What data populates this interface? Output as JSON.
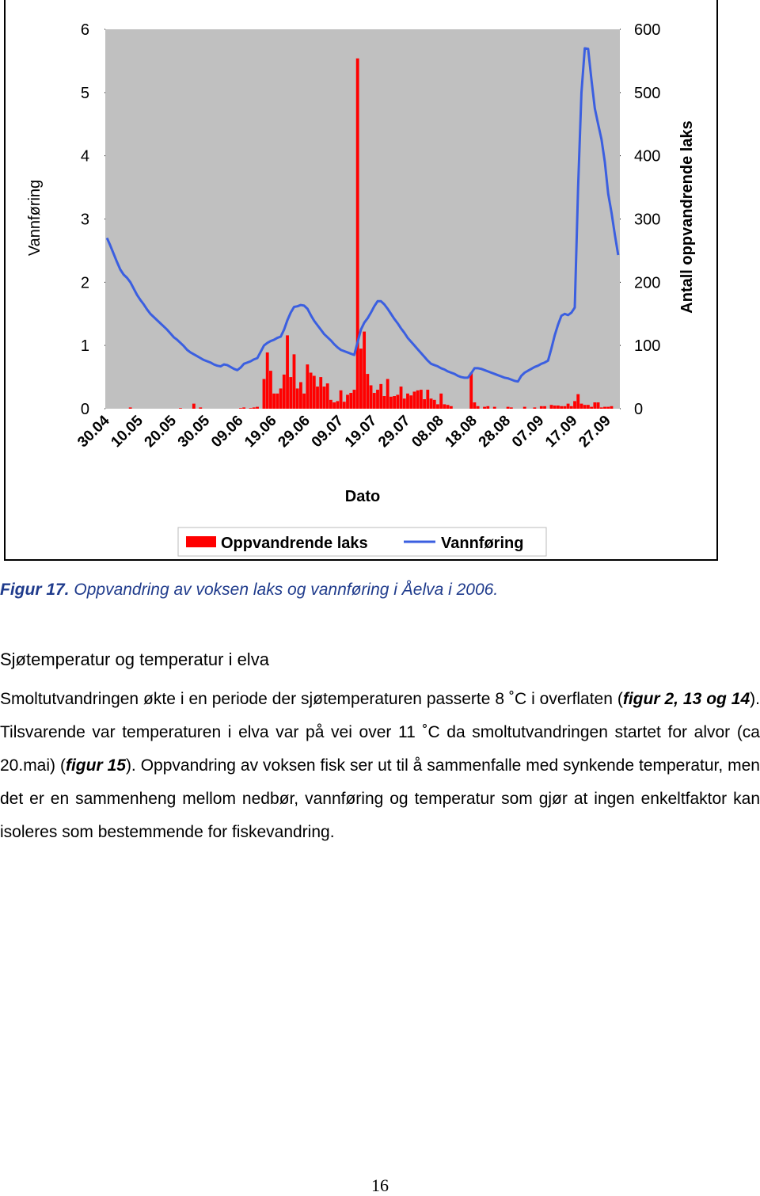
{
  "chart_data": {
    "type": "bar-line",
    "x_label": "Dato",
    "y_label": "Vannføring",
    "y2_label": "Antall oppvandrende laks",
    "categories": [
      "30.04",
      null,
      null,
      null,
      null,
      null,
      null,
      null,
      null,
      null,
      "10.05",
      null,
      null,
      null,
      null,
      null,
      null,
      null,
      null,
      null,
      "20.05",
      null,
      null,
      null,
      null,
      null,
      null,
      null,
      null,
      null,
      "30.05",
      null,
      null,
      null,
      null,
      null,
      null,
      null,
      null,
      null,
      "09.06",
      null,
      null,
      null,
      null,
      null,
      null,
      null,
      null,
      null,
      "19.06",
      null,
      null,
      null,
      null,
      null,
      null,
      null,
      null,
      null,
      "29.06",
      null,
      null,
      null,
      null,
      null,
      null,
      null,
      null,
      null,
      "09.07",
      null,
      null,
      null,
      null,
      null,
      null,
      null,
      null,
      null,
      "19.07",
      null,
      null,
      null,
      null,
      null,
      null,
      null,
      null,
      null,
      "29.07",
      null,
      null,
      null,
      null,
      null,
      null,
      null,
      null,
      null,
      "08.08",
      null,
      null,
      null,
      null,
      null,
      null,
      null,
      null,
      null,
      "18.08",
      null,
      null,
      null,
      null,
      null,
      null,
      null,
      null,
      null,
      "28.08",
      null,
      null,
      null,
      null,
      null,
      null,
      null,
      null,
      null,
      "07.09",
      null,
      null,
      null,
      null,
      null,
      null,
      null,
      null,
      null,
      "17.09",
      null,
      null,
      null,
      null,
      null,
      null,
      null,
      null,
      null,
      "27.09",
      null,
      null,
      null
    ],
    "series": [
      {
        "name": "Oppvandrende laks",
        "type": "bar",
        "axis": "y2",
        "color": "#ff0000",
        "values": [
          0,
          0,
          0,
          0,
          0,
          0,
          0,
          2,
          0,
          0,
          0,
          0,
          0,
          0,
          0,
          0,
          0,
          0,
          0,
          0,
          0,
          0,
          1,
          0,
          0,
          0,
          8,
          0,
          2,
          0,
          0,
          0,
          0,
          0,
          0,
          0,
          0,
          0,
          0,
          0,
          1,
          2,
          0,
          1,
          2,
          3,
          0,
          47,
          89,
          60,
          24,
          24,
          32,
          54,
          116,
          50,
          86,
          32,
          42,
          24,
          70,
          57,
          52,
          35,
          50,
          35,
          40,
          14,
          10,
          12,
          29,
          11,
          22,
          25,
          30,
          554,
          95,
          122,
          55,
          37,
          25,
          30,
          39,
          20,
          47,
          19,
          20,
          22,
          35,
          16,
          24,
          21,
          27,
          29,
          30,
          15,
          30,
          16,
          14,
          7,
          24,
          7,
          6,
          4,
          0,
          0,
          0,
          0,
          0,
          57,
          10,
          4,
          0,
          3,
          4,
          0,
          3,
          0,
          0,
          0,
          3,
          2,
          0,
          0,
          0,
          3,
          0,
          0,
          2,
          0,
          4,
          4,
          0,
          6,
          5,
          5,
          4,
          4,
          8,
          4,
          12,
          23,
          8,
          6,
          6,
          3,
          10,
          10,
          2,
          3,
          3,
          4,
          0,
          0
        ]
      },
      {
        "name": "Vannføring",
        "type": "line",
        "axis": "y",
        "color": "#3b5fe0",
        "values": [
          2.7,
          2.58,
          2.45,
          2.32,
          2.2,
          2.12,
          2.07,
          2.0,
          1.9,
          1.8,
          1.72,
          1.65,
          1.57,
          1.5,
          1.45,
          1.4,
          1.35,
          1.3,
          1.25,
          1.19,
          1.13,
          1.09,
          1.04,
          0.99,
          0.93,
          0.89,
          0.86,
          0.83,
          0.8,
          0.77,
          0.75,
          0.73,
          0.7,
          0.68,
          0.67,
          0.7,
          0.69,
          0.66,
          0.63,
          0.61,
          0.65,
          0.71,
          0.73,
          0.75,
          0.78,
          0.8,
          0.9,
          1.0,
          1.04,
          1.07,
          1.09,
          1.12,
          1.14,
          1.25,
          1.4,
          1.52,
          1.61,
          1.62,
          1.64,
          1.63,
          1.58,
          1.48,
          1.39,
          1.32,
          1.25,
          1.18,
          1.13,
          1.08,
          1.02,
          0.97,
          0.93,
          0.91,
          0.89,
          0.87,
          0.85,
          1.05,
          1.25,
          1.36,
          1.43,
          1.52,
          1.62,
          1.7,
          1.7,
          1.65,
          1.58,
          1.5,
          1.42,
          1.35,
          1.27,
          1.2,
          1.12,
          1.06,
          1.0,
          0.94,
          0.88,
          0.82,
          0.76,
          0.71,
          0.69,
          0.67,
          0.64,
          0.62,
          0.59,
          0.57,
          0.55,
          0.52,
          0.5,
          0.49,
          0.49,
          0.56,
          0.64,
          0.64,
          0.63,
          0.61,
          0.59,
          0.57,
          0.55,
          0.53,
          0.51,
          0.49,
          0.48,
          0.46,
          0.44,
          0.43,
          0.52,
          0.57,
          0.6,
          0.63,
          0.66,
          0.68,
          0.71,
          0.73,
          0.76,
          0.95,
          1.16,
          1.33,
          1.47,
          1.5,
          1.48,
          1.52,
          1.6,
          3.5,
          5.0,
          5.7,
          5.69,
          5.2,
          4.75,
          4.5,
          4.26,
          3.9,
          3.4,
          3.1,
          2.75,
          2.43
        ]
      }
    ],
    "ylim": [
      0,
      6
    ],
    "yticks": [
      0,
      1,
      2,
      3,
      4,
      5,
      6
    ],
    "y2lim": [
      0,
      600
    ],
    "y2ticks": [
      0,
      100,
      200,
      300,
      400,
      500,
      600
    ],
    "plot_background": "#c0c0c0",
    "grid": false,
    "legend": "bottom"
  },
  "caption": {
    "label": "Figur 17.",
    "text": "Oppvandring av voksen laks og vannføring i Åelva i 2006."
  },
  "heading": "Sjøtemperatur og temperatur i elva",
  "paragraph": [
    "Smoltutvandringen økte i en periode der sjøtemperaturen passerte 8 ˚C i overflaten (",
    "figur 2, 13 og 14",
    "). Tilsvarende var temperaturen i elva var på vei over 11 ˚C da smoltutvandringen startet for alvor (ca 20.mai) (",
    "figur 15",
    "). Oppvandring av voksen fisk ser ut til å sammenfalle med synkende temperatur, men det er en sammenheng mellom nedbør, vannføring og temperatur som gjør at ingen enkeltfaktor kan isoleres som bestemmende for fiskevandring."
  ],
  "page_number": "16"
}
